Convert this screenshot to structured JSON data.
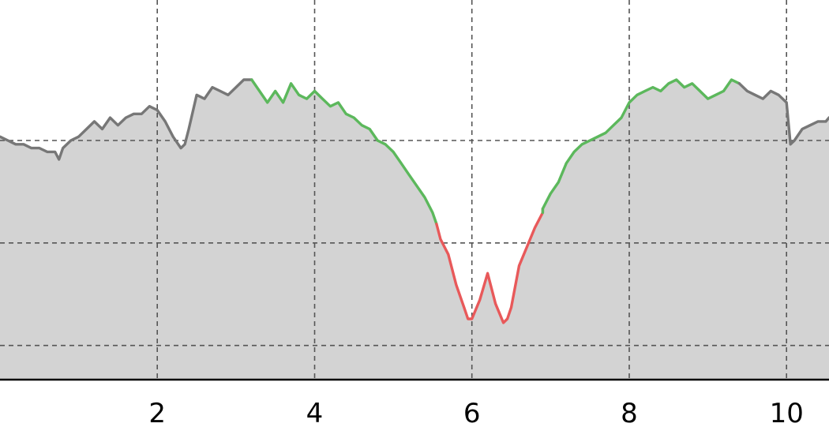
{
  "chart_data": {
    "type": "area",
    "title": "",
    "xlabel": "",
    "ylabel": "",
    "xlim": [
      0.0,
      10.54
    ],
    "ylim": [
      0.0,
      1.0
    ],
    "x_ticks": [
      2,
      4,
      6,
      8,
      10
    ],
    "x_tick_labels": [
      "2",
      "4",
      "6",
      "8",
      "10"
    ],
    "y_gridlines": [
      0.09,
      0.36,
      0.63
    ],
    "grid": true,
    "colors": {
      "fill": "#d3d3d3",
      "line_default": "#777777",
      "line_green": "#5cb85c",
      "line_red": "#e8595a"
    },
    "series": [
      {
        "x": [
          0.0,
          0.1,
          0.2,
          0.3,
          0.4,
          0.5,
          0.6,
          0.7,
          0.75,
          0.8,
          0.9,
          1.0,
          1.1,
          1.2,
          1.3,
          1.4,
          1.5,
          1.6,
          1.7,
          1.8,
          1.9,
          2.0,
          2.1,
          2.2,
          2.3,
          2.35,
          2.4,
          2.5,
          2.6,
          2.7,
          2.8,
          2.9,
          3.0,
          3.1,
          3.2,
          3.3,
          3.4,
          3.5,
          3.6,
          3.7,
          3.8,
          3.9,
          4.0,
          4.1,
          4.2,
          4.3,
          4.4,
          4.5,
          4.6,
          4.7,
          4.8,
          4.9,
          5.0,
          5.1,
          5.2,
          5.3,
          5.4,
          5.5,
          5.55,
          5.6,
          5.7,
          5.8,
          5.9,
          5.95,
          6.0,
          6.1,
          6.2,
          6.3,
          6.4,
          6.45,
          6.5,
          6.6,
          6.7,
          6.8,
          6.9,
          6.9,
          7.0,
          7.1,
          7.2,
          7.3,
          7.4,
          7.5,
          7.6,
          7.7,
          7.8,
          7.9,
          8.0,
          8.1,
          8.2,
          8.3,
          8.4,
          8.5,
          8.6,
          8.7,
          8.8,
          8.9,
          9.0,
          9.1,
          9.2,
          9.3,
          9.4,
          9.5,
          9.6,
          9.7,
          9.8,
          9.9,
          10.0,
          10.05,
          10.1,
          10.2,
          10.3,
          10.4,
          10.5,
          10.54
        ],
        "y": [
          0.64,
          0.63,
          0.62,
          0.62,
          0.61,
          0.61,
          0.6,
          0.6,
          0.58,
          0.61,
          0.63,
          0.64,
          0.66,
          0.68,
          0.66,
          0.69,
          0.67,
          0.69,
          0.7,
          0.7,
          0.72,
          0.71,
          0.68,
          0.64,
          0.61,
          0.62,
          0.66,
          0.75,
          0.74,
          0.77,
          0.76,
          0.75,
          0.77,
          0.79,
          0.79,
          0.76,
          0.73,
          0.76,
          0.73,
          0.78,
          0.75,
          0.74,
          0.76,
          0.74,
          0.72,
          0.73,
          0.7,
          0.69,
          0.67,
          0.66,
          0.63,
          0.62,
          0.6,
          0.57,
          0.54,
          0.51,
          0.48,
          0.44,
          0.41,
          0.37,
          0.33,
          0.25,
          0.19,
          0.16,
          0.16,
          0.21,
          0.28,
          0.2,
          0.15,
          0.16,
          0.19,
          0.3,
          0.35,
          0.4,
          0.44,
          0.45,
          0.49,
          0.52,
          0.57,
          0.6,
          0.62,
          0.63,
          0.64,
          0.65,
          0.67,
          0.69,
          0.73,
          0.75,
          0.76,
          0.77,
          0.76,
          0.78,
          0.79,
          0.77,
          0.78,
          0.76,
          0.74,
          0.75,
          0.76,
          0.79,
          0.78,
          0.76,
          0.75,
          0.74,
          0.76,
          0.75,
          0.73,
          0.62,
          0.63,
          0.66,
          0.67,
          0.68,
          0.68,
          0.69
        ],
        "segments": [
          {
            "color": "line_default",
            "x_range": [
              0.0,
              3.2
            ]
          },
          {
            "color": "line_green",
            "x_range": [
              3.2,
              5.55
            ]
          },
          {
            "color": "line_red",
            "x_range": [
              5.55,
              6.9
            ]
          },
          {
            "color": "line_green",
            "x_range": [
              6.9,
              9.4
            ]
          },
          {
            "color": "line_default",
            "x_range": [
              9.4,
              10.54
            ]
          }
        ]
      }
    ]
  }
}
